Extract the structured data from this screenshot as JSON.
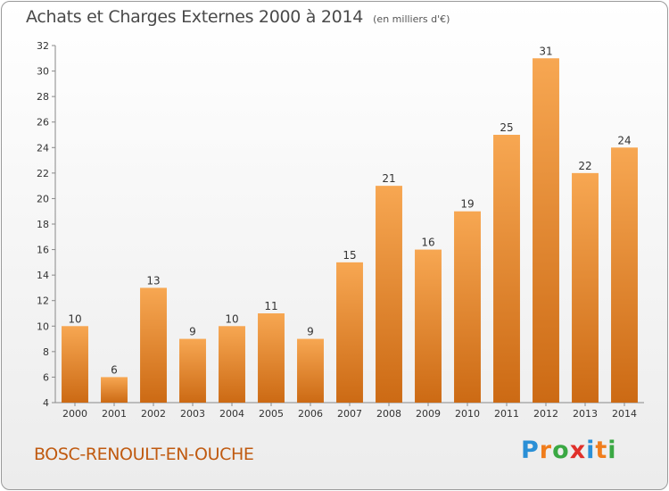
{
  "title": "Achats et Charges Externes 2000 à 2014",
  "subtitle": "(en milliers d'€)",
  "commune": "BOSC-RENOULT-EN-OUCHE",
  "logo": {
    "letters": [
      "P",
      "r",
      "o",
      "x",
      "i",
      "t",
      "i"
    ],
    "colors": [
      "#2a8fd6",
      "#f07d1c",
      "#3aa843",
      "#e0302a",
      "#2a8fd6",
      "#f07d1c",
      "#3aa843"
    ]
  },
  "colors": {
    "bar_top": "#f7a752",
    "bar_bottom": "#cc6a14",
    "title": "#4a4a4a",
    "commune": "#c05a10"
  },
  "chart_data": {
    "type": "bar",
    "categories": [
      "2000",
      "2001",
      "2002",
      "2003",
      "2004",
      "2005",
      "2006",
      "2007",
      "2008",
      "2009",
      "2010",
      "2011",
      "2012",
      "2013",
      "2014"
    ],
    "values": [
      10,
      6,
      13,
      9,
      10,
      11,
      9,
      15,
      21,
      16,
      19,
      25,
      31,
      22,
      24
    ],
    "title": "Achats et Charges Externes 2000 à 2014",
    "subtitle": "(en milliers d'€)",
    "xlabel": "",
    "ylabel": "",
    "ylim": [
      4,
      32
    ],
    "yticks": [
      4,
      6,
      8,
      10,
      12,
      14,
      16,
      18,
      20,
      22,
      24,
      26,
      28,
      30,
      32
    ],
    "grid": false,
    "legend": "none"
  }
}
